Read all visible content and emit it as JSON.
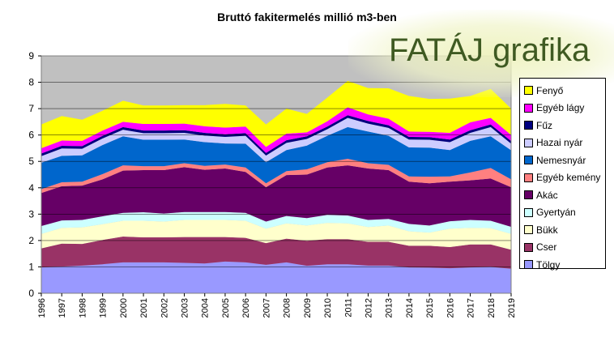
{
  "watermark": "FATÁJ grafika",
  "chart_data": {
    "type": "area",
    "title": "Bruttó fakitermelés millió m3-ben",
    "xlabel": "",
    "ylabel": "",
    "stacked": true,
    "ylim": [
      0,
      9
    ],
    "yticks": [
      "0",
      "1",
      "2",
      "3",
      "4",
      "5",
      "6",
      "7",
      "8",
      "9"
    ],
    "grid": true,
    "legend_position": "right",
    "background": "#c0c0c0",
    "categories": [
      "1996",
      "1997",
      "1998",
      "1999",
      "2000",
      "2001",
      "2002",
      "2003",
      "2004",
      "2005",
      "2006",
      "2007",
      "2008",
      "2009",
      "2010",
      "2011",
      "2012",
      "2013",
      "2014",
      "2015",
      "2016",
      "2017",
      "2018",
      "2019"
    ],
    "series": [
      {
        "name": "Tölgy",
        "color": "#9999ff",
        "values": [
          0.98,
          1.01,
          1.05,
          1.1,
          1.17,
          1.17,
          1.17,
          1.15,
          1.13,
          1.2,
          1.17,
          1.08,
          1.17,
          1.04,
          1.1,
          1.1,
          1.05,
          1.05,
          0.98,
          0.97,
          0.95,
          0.98,
          1.0,
          0.93
        ]
      },
      {
        "name": "Cser",
        "color": "#993366",
        "values": [
          0.72,
          0.87,
          0.82,
          0.92,
          0.98,
          0.95,
          0.95,
          0.98,
          1.0,
          0.93,
          0.93,
          0.82,
          0.9,
          0.95,
          0.95,
          0.95,
          0.9,
          0.9,
          0.82,
          0.83,
          0.8,
          0.87,
          0.85,
          0.72
        ]
      },
      {
        "name": "Bükk",
        "color": "#ffffcc",
        "values": [
          0.55,
          0.6,
          0.63,
          0.6,
          0.6,
          0.63,
          0.6,
          0.65,
          0.65,
          0.65,
          0.65,
          0.55,
          0.58,
          0.58,
          0.62,
          0.6,
          0.56,
          0.62,
          0.55,
          0.5,
          0.7,
          0.63,
          0.62,
          0.6
        ]
      },
      {
        "name": "Gyertyán",
        "color": "#ccffff",
        "values": [
          0.3,
          0.28,
          0.28,
          0.3,
          0.3,
          0.32,
          0.3,
          0.3,
          0.3,
          0.3,
          0.3,
          0.27,
          0.28,
          0.28,
          0.3,
          0.3,
          0.27,
          0.25,
          0.28,
          0.27,
          0.28,
          0.3,
          0.28,
          0.27
        ]
      },
      {
        "name": "Akác",
        "color": "#660066",
        "values": [
          1.25,
          1.3,
          1.3,
          1.4,
          1.6,
          1.6,
          1.65,
          1.7,
          1.6,
          1.65,
          1.55,
          1.3,
          1.55,
          1.65,
          1.8,
          1.9,
          1.95,
          1.85,
          1.6,
          1.6,
          1.5,
          1.5,
          1.6,
          1.5
        ]
      },
      {
        "name": "Egyéb kemény",
        "color": "#ff8080",
        "values": [
          0.15,
          0.15,
          0.15,
          0.2,
          0.2,
          0.15,
          0.15,
          0.15,
          0.15,
          0.15,
          0.17,
          0.15,
          0.15,
          0.2,
          0.2,
          0.25,
          0.2,
          0.2,
          0.2,
          0.25,
          0.2,
          0.3,
          0.4,
          0.3
        ]
      },
      {
        "name": "Nemesnyár",
        "color": "#0066cc",
        "values": [
          1.0,
          1.0,
          1.0,
          1.1,
          1.1,
          1.0,
          1.0,
          0.9,
          0.9,
          0.8,
          0.9,
          0.8,
          0.8,
          0.9,
          1.0,
          1.2,
          1.2,
          1.1,
          1.1,
          1.1,
          1.0,
          1.2,
          1.2,
          1.1
        ]
      },
      {
        "name": "Hazai nyár",
        "color": "#ccccff",
        "values": [
          0.25,
          0.28,
          0.25,
          0.25,
          0.25,
          0.25,
          0.25,
          0.25,
          0.25,
          0.25,
          0.3,
          0.25,
          0.27,
          0.25,
          0.25,
          0.35,
          0.3,
          0.3,
          0.3,
          0.3,
          0.3,
          0.3,
          0.35,
          0.25
        ]
      },
      {
        "name": "Fűz",
        "color": "#000080",
        "values": [
          0.1,
          0.1,
          0.1,
          0.1,
          0.1,
          0.1,
          0.1,
          0.1,
          0.1,
          0.1,
          0.1,
          0.1,
          0.1,
          0.1,
          0.1,
          0.1,
          0.1,
          0.1,
          0.1,
          0.1,
          0.1,
          0.1,
          0.1,
          0.1
        ]
      },
      {
        "name": "Egyéb lágy",
        "color": "#ff00ff",
        "values": [
          0.2,
          0.2,
          0.2,
          0.2,
          0.2,
          0.25,
          0.25,
          0.25,
          0.25,
          0.25,
          0.25,
          0.23,
          0.25,
          0.15,
          0.2,
          0.3,
          0.25,
          0.25,
          0.2,
          0.2,
          0.25,
          0.3,
          0.25,
          0.23
        ]
      },
      {
        "name": "Fenyő",
        "color": "#ffff00",
        "values": [
          0.9,
          0.93,
          0.8,
          0.75,
          0.8,
          0.7,
          0.7,
          0.7,
          0.8,
          0.9,
          0.8,
          0.85,
          0.95,
          0.7,
          0.9,
          1.0,
          1.0,
          1.15,
          1.35,
          1.25,
          1.3,
          1.0,
          1.1,
          1.0
        ]
      }
    ]
  }
}
